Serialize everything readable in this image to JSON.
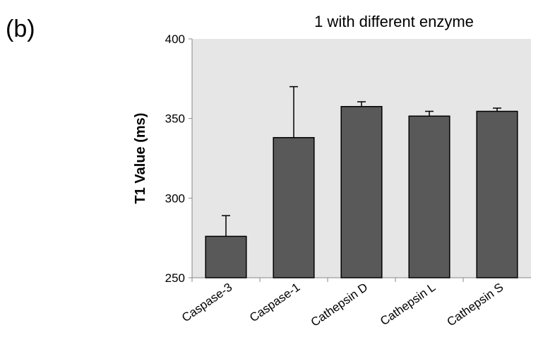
{
  "chart_data": {
    "type": "bar",
    "panel_label": "(b)",
    "title": "1 with different enzyme",
    "ylabel": "T1 Value (ms)",
    "categories": [
      "Caspase-3",
      "Caspase-1",
      "Cathepsin D",
      "Cathepsin L",
      "Cathepsin S"
    ],
    "values": [
      276,
      338,
      357.5,
      351.5,
      354.5
    ],
    "errors": [
      13,
      32,
      3,
      3,
      2
    ],
    "color": "#595959",
    "ylim": [
      250,
      400
    ],
    "yticks": [
      250,
      300,
      350,
      400
    ],
    "grid": false
  }
}
